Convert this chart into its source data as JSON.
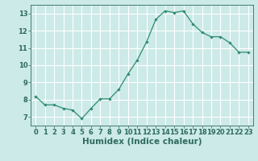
{
  "x": [
    0,
    1,
    2,
    3,
    4,
    5,
    6,
    7,
    8,
    9,
    10,
    11,
    12,
    13,
    14,
    15,
    16,
    17,
    18,
    19,
    20,
    21,
    22,
    23
  ],
  "y": [
    8.2,
    7.7,
    7.7,
    7.5,
    7.4,
    6.9,
    7.5,
    8.05,
    8.05,
    8.6,
    9.5,
    10.3,
    11.35,
    12.65,
    13.15,
    13.05,
    13.15,
    12.4,
    11.9,
    11.65,
    11.65,
    11.3,
    10.75,
    10.75
  ],
  "line_color": "#2e8b70",
  "marker": "D",
  "marker_size": 1.8,
  "background_color": "#cceae7",
  "grid_color": "#ffffff",
  "xlabel": "Humidex (Indice chaleur)",
  "xlim": [
    -0.5,
    23.5
  ],
  "ylim": [
    6.5,
    13.5
  ],
  "yticks": [
    7,
    8,
    9,
    10,
    11,
    12,
    13
  ],
  "xticks": [
    0,
    1,
    2,
    3,
    4,
    5,
    6,
    7,
    8,
    9,
    10,
    11,
    12,
    13,
    14,
    15,
    16,
    17,
    18,
    19,
    20,
    21,
    22,
    23
  ],
  "tick_fontsize": 6.0,
  "label_fontsize": 7.5,
  "axis_color": "#2e6b5e"
}
